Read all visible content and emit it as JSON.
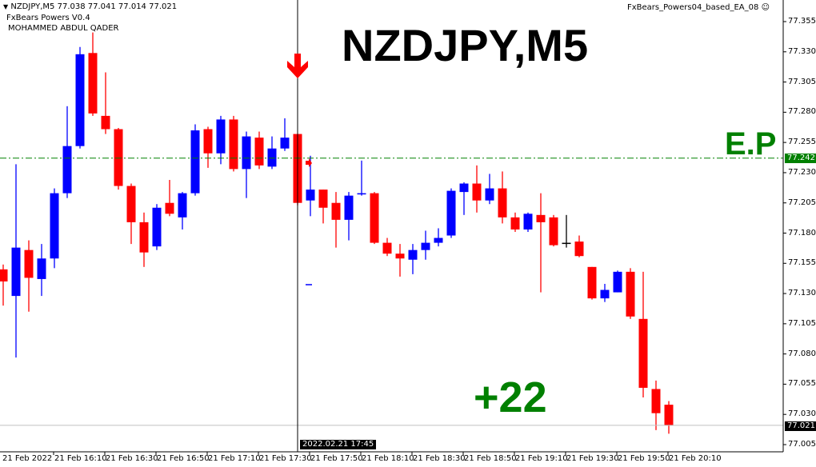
{
  "header": {
    "symbol_line": "NZDJPY,M5  77.038 77.041 77.014 77.021",
    "indicator_name": "FxBears Powers V0.4",
    "author": "MOHAMMED ABDUL QADER",
    "expert_name": "FxBears_Powers04_based_EA_08",
    "expert_icon": "smiley-icon"
  },
  "overlay": {
    "title": "NZDJPY,M5",
    "entry_label": "E.P",
    "profit_label": "+22",
    "crosshair_time": "2022.02.21 17:45",
    "entry_price_tag": "77.242",
    "current_price_tag": "77.021",
    "signal_icon": "down-arrow-icon"
  },
  "colors": {
    "bull": "#0000ff",
    "bear": "#ff0000",
    "text_green": "#008000",
    "entry_line": "#008000",
    "bid_line": "#c0c0c0"
  },
  "chart_data": {
    "type": "candlestick",
    "symbol": "NZDJPY",
    "timeframe": "M5",
    "grid": false,
    "ylim": [
      77.005,
      77.355
    ],
    "y_ticks": [
      "77.355",
      "77.330",
      "77.305",
      "77.280",
      "77.255",
      "77.230",
      "77.205",
      "77.180",
      "77.155",
      "77.130",
      "77.105",
      "77.080",
      "77.055",
      "77.030",
      "77.005"
    ],
    "x_ticks": [
      "21 Feb 2022",
      "21 Feb 16:10",
      "21 Feb 16:30",
      "21 Feb 16:50",
      "21 Feb 17:10",
      "21 Feb 17:30",
      "21 Feb 17:50",
      "21 Feb 18:10",
      "21 Feb 18:30",
      "21 Feb 18:50",
      "21 Feb 19:10",
      "21 Feb 19:30",
      "21 Feb 19:50",
      "21 Feb 20:10"
    ],
    "entry_price": 77.242,
    "current_price": 77.021,
    "crosshair_index": 23,
    "ohlc": [
      [
        77.15,
        77.154,
        77.12,
        77.14
      ],
      [
        77.128,
        77.237,
        77.077,
        77.168
      ],
      [
        77.166,
        77.174,
        77.115,
        77.143
      ],
      [
        77.142,
        77.171,
        77.128,
        77.159
      ],
      [
        77.159,
        77.217,
        77.151,
        77.213
      ],
      [
        77.213,
        77.285,
        77.209,
        77.252
      ],
      [
        77.252,
        77.334,
        77.25,
        77.328
      ],
      [
        77.329,
        77.346,
        77.277,
        77.279
      ],
      [
        77.277,
        77.313,
        77.262,
        77.266
      ],
      [
        77.266,
        77.267,
        77.216,
        77.219
      ],
      [
        77.219,
        77.221,
        77.171,
        77.189
      ],
      [
        77.189,
        77.197,
        77.152,
        77.164
      ],
      [
        77.169,
        77.204,
        77.166,
        77.201
      ],
      [
        77.205,
        77.224,
        77.194,
        77.196
      ],
      [
        77.193,
        77.214,
        77.183,
        77.213
      ],
      [
        77.213,
        77.27,
        77.211,
        77.265
      ],
      [
        77.266,
        77.268,
        77.234,
        77.246
      ],
      [
        77.246,
        77.277,
        77.237,
        77.274
      ],
      [
        77.274,
        77.277,
        77.231,
        77.233
      ],
      [
        77.233,
        77.264,
        77.209,
        77.26
      ],
      [
        77.259,
        77.264,
        77.233,
        77.236
      ],
      [
        77.235,
        77.26,
        77.233,
        77.25
      ],
      [
        77.25,
        77.275,
        77.248,
        77.259
      ],
      [
        77.262,
        77.262,
        77.203,
        77.205
      ],
      [
        77.207,
        77.244,
        77.194,
        77.216
      ],
      [
        77.216,
        77.216,
        77.188,
        77.201
      ],
      [
        77.205,
        77.214,
        77.168,
        77.191
      ],
      [
        77.191,
        77.214,
        77.174,
        77.211
      ],
      [
        77.212,
        77.24,
        77.211,
        77.213
      ],
      [
        77.213,
        77.214,
        77.171,
        77.172
      ],
      [
        77.172,
        77.176,
        77.161,
        77.163
      ],
      [
        77.163,
        77.171,
        77.144,
        77.159
      ],
      [
        77.158,
        77.171,
        77.146,
        77.166
      ],
      [
        77.166,
        77.182,
        77.158,
        77.172
      ],
      [
        77.172,
        77.184,
        77.169,
        77.176
      ],
      [
        77.178,
        77.217,
        77.176,
        77.215
      ],
      [
        77.214,
        77.222,
        77.195,
        77.221
      ],
      [
        77.221,
        77.236,
        77.197,
        77.207
      ],
      [
        77.207,
        77.229,
        77.204,
        77.217
      ],
      [
        77.217,
        77.231,
        77.188,
        77.193
      ],
      [
        77.193,
        77.197,
        77.181,
        77.183
      ],
      [
        77.183,
        77.197,
        77.181,
        77.196
      ],
      [
        77.195,
        77.213,
        77.131,
        77.189
      ],
      [
        77.193,
        77.195,
        77.169,
        77.17
      ],
      [
        77.172,
        77.195,
        77.168,
        77.172
      ],
      [
        77.173,
        77.178,
        77.16,
        77.161
      ],
      [
        77.152,
        77.152,
        77.125,
        77.126
      ],
      [
        77.126,
        77.138,
        77.123,
        77.133
      ],
      [
        77.131,
        77.149,
        77.131,
        77.148
      ],
      [
        77.148,
        77.151,
        77.109,
        77.111
      ],
      [
        77.109,
        77.148,
        77.044,
        77.052
      ],
      [
        77.051,
        77.058,
        77.017,
        77.031
      ],
      [
        77.038,
        77.041,
        77.014,
        77.021
      ]
    ]
  }
}
